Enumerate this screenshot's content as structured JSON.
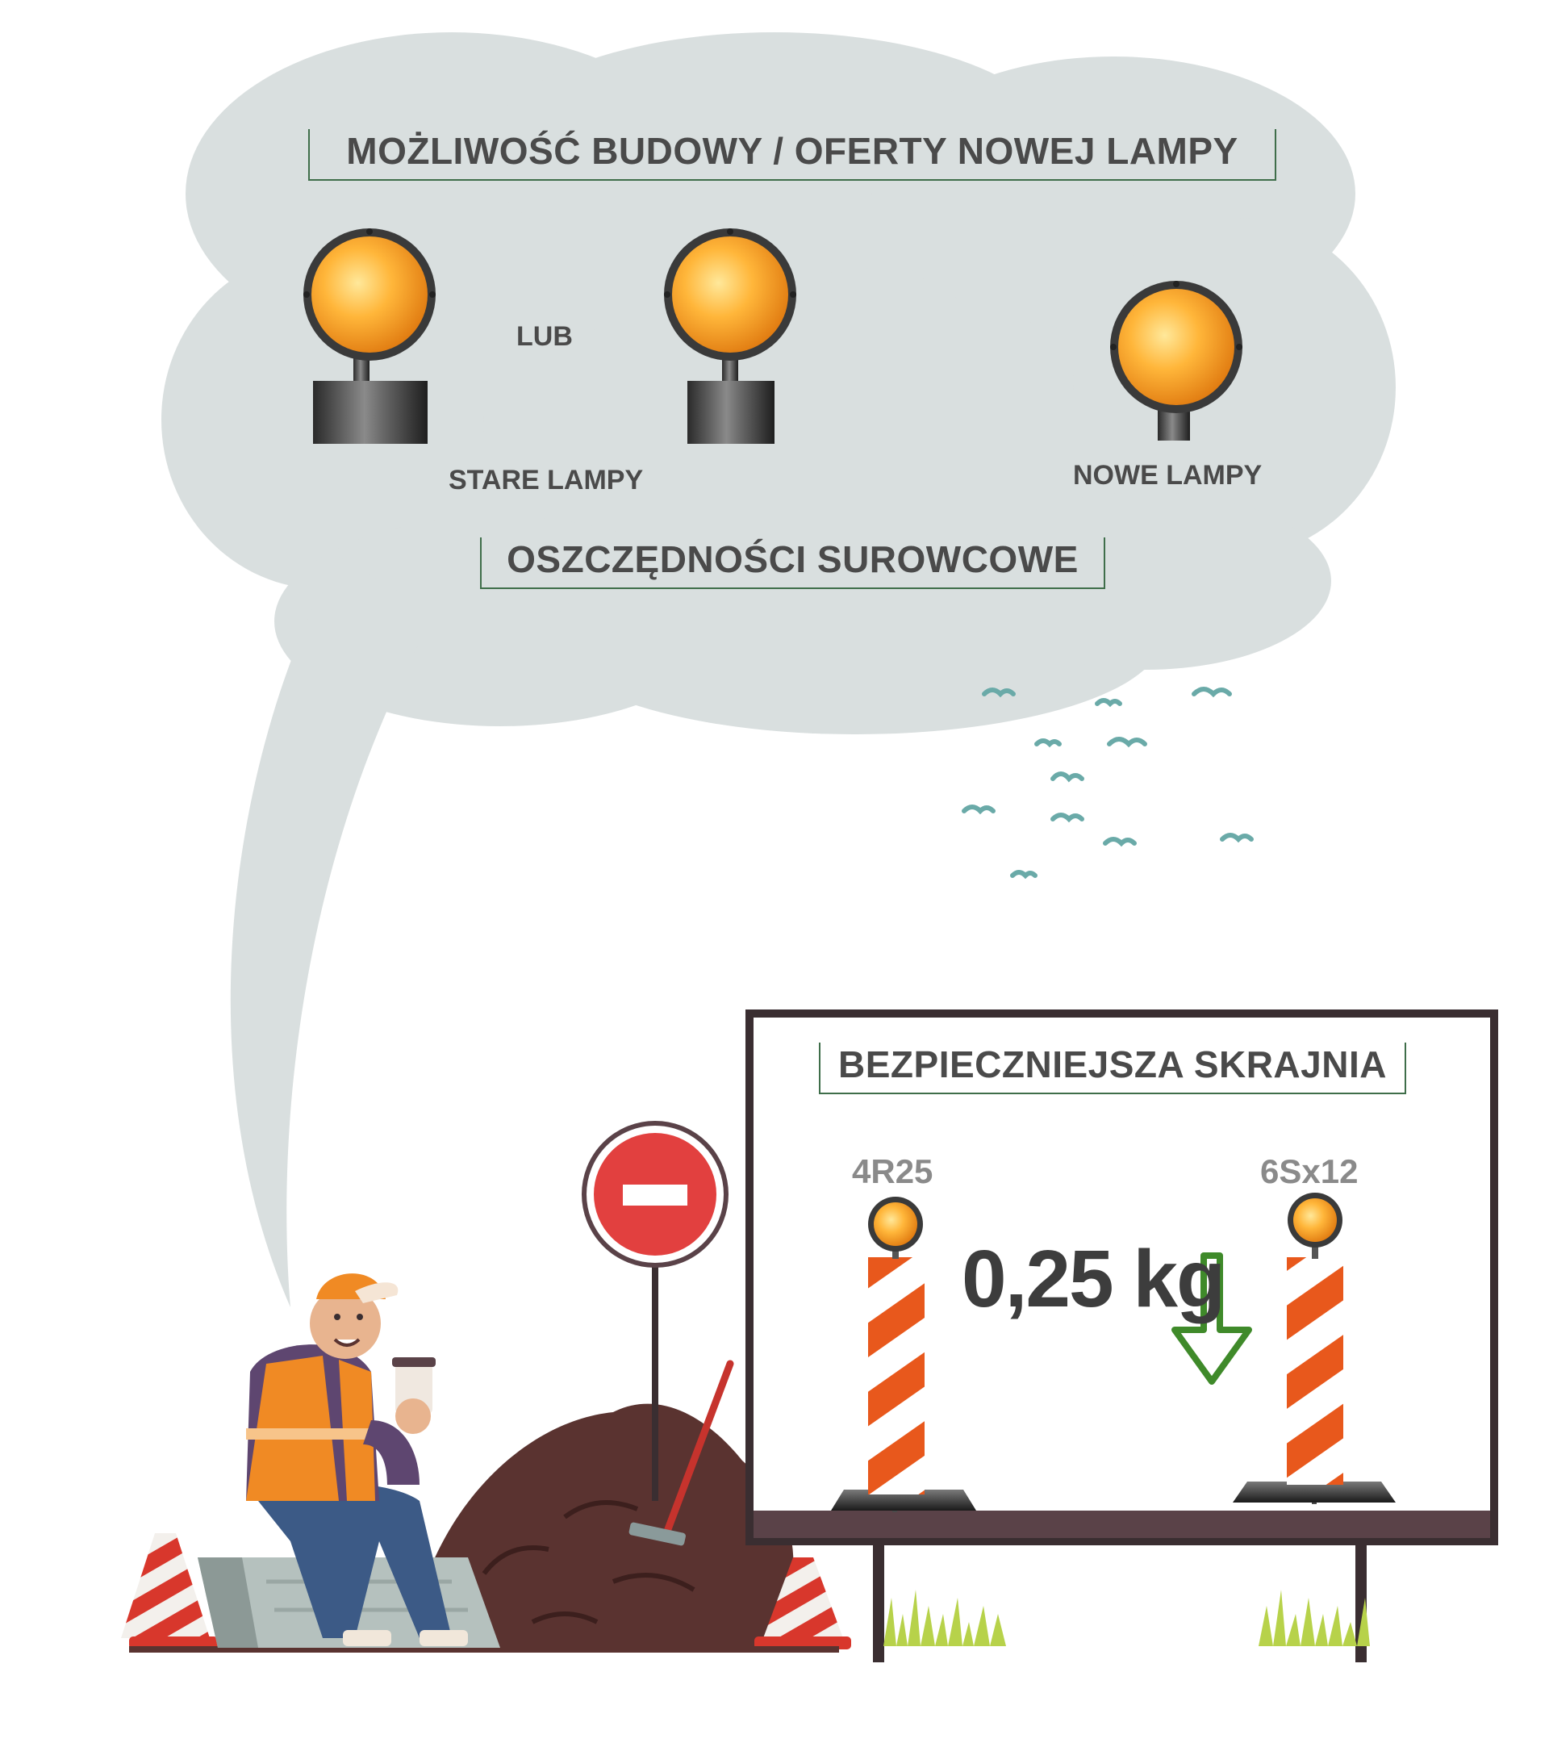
{
  "cloud": {
    "title": "MOŻLIWOŚĆ BUDOWY / OFERTY NOWEJ LAMPY",
    "or_label": "LUB",
    "old_lamps_label": "STARE LAMPY",
    "new_lamps_label": "NOWE LAMPY",
    "savings_label": "OSZCZĘDNOŚCI SUROWCOWE"
  },
  "board": {
    "title": "BEZPIECZNIEJSZA SKRAJNIA",
    "left_code": "4R25",
    "right_code": "6Sx12",
    "weight": "0,25 kg"
  },
  "colors": {
    "cloud": "#d9dfdf",
    "bracket": "#3f6e4a",
    "lamp_orange": "#f5a623",
    "stripe_orange": "#e8581c",
    "board_frame": "#3a2e31",
    "board_floor": "#5a4248",
    "arrow_green": "#3f8a2a",
    "birds": "#6aaaa8"
  }
}
